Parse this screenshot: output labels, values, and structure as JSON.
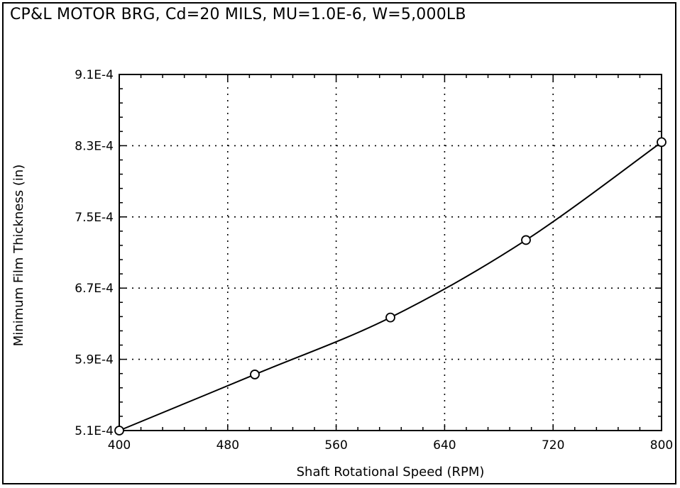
{
  "chart_data": {
    "type": "line",
    "title": "CP&L MOTOR BRG, Cd=20 MILS, MU=1.0E-6, W=5,000LB",
    "xlabel": "Shaft Rotational Speed (RPM)",
    "ylabel": "Minimum Film Thickness (in)",
    "xlim": [
      400,
      800
    ],
    "ylim": [
      0.00051,
      0.00091
    ],
    "x_ticks": [
      400,
      480,
      560,
      640,
      720,
      800
    ],
    "x_tick_labels": [
      "400",
      "480",
      "560",
      "640",
      "720",
      "800"
    ],
    "y_ticks": [
      0.00051,
      0.00059,
      0.00067,
      0.00075,
      0.00083,
      0.00091
    ],
    "y_tick_labels": [
      "5.1E-4",
      "5.9E-4",
      "6.7E-4",
      "7.5E-4",
      "8.3E-4",
      "9.1E-4"
    ],
    "grid": true,
    "series": [
      {
        "markers": "circle",
        "x": [
          400,
          500,
          600,
          700,
          800
        ],
        "y": [
          0.00051,
          0.000573,
          0.000637,
          0.000724,
          0.000834
        ]
      }
    ]
  }
}
